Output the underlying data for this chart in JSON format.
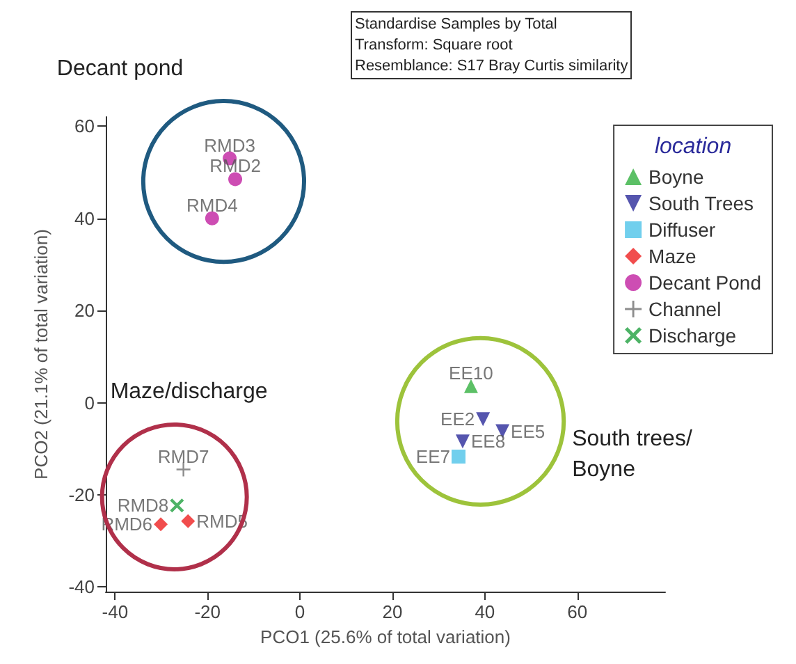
{
  "chart_data": {
    "type": "scatter",
    "xlabel": "PCO1 (25.6% of total variation)",
    "ylabel": "PCO2 (21.1% of total variation)",
    "legend_title": "location",
    "legend": "top right",
    "grid": false,
    "xlim": [
      -42,
      79
    ],
    "ylim": [
      -41,
      62
    ],
    "xticks": [
      -40,
      -20,
      0,
      20,
      40,
      60
    ],
    "yticks": [
      -40,
      -20,
      0,
      20,
      40,
      60
    ],
    "series": [
      {
        "name": "Boyne",
        "color": "#33b040",
        "marker": "triangle",
        "x": [
          37
        ],
        "values": [
          3.6
        ]
      },
      {
        "name": "South Trees",
        "color": "#2a2a9a",
        "marker": "triangle-down",
        "x": [
          39.6,
          43.8,
          35.2
        ],
        "values": [
          -3.6,
          -6.2,
          -8.4
        ]
      },
      {
        "name": "Diffuser",
        "color": "#4ec3e8",
        "marker": "square",
        "x": [
          34.3
        ],
        "values": [
          -11.7
        ]
      },
      {
        "name": "Maze",
        "color": "#ee2020",
        "marker": "diamond",
        "x": [
          -30.1,
          -24.2
        ],
        "values": [
          -26.4,
          -25.7
        ]
      },
      {
        "name": "Decant Pond",
        "color": "#c020a0",
        "marker": "circle",
        "x": [
          -15.2,
          -14,
          -19
        ],
        "values": [
          53,
          48.5,
          40
        ]
      },
      {
        "name": "Channel",
        "color": "#707070",
        "marker": "plus",
        "x": [
          -25.2
        ],
        "values": [
          -14.5
        ]
      },
      {
        "name": "Discharge",
        "color": "#20a040",
        "marker": "cross",
        "x": [
          -26.6
        ],
        "values": [
          -22.3
        ]
      }
    ],
    "annotations": [
      "Standardise Samples by Total",
      "Transform: Square root",
      "Resemblance: S17 Bray Curtis similarity",
      "Decant pond",
      "Maze/discharge",
      "South trees/\nBoyne",
      {
        "text": "RMD3",
        "x": -15.2,
        "y": 53
      },
      {
        "text": "RMD2",
        "x": -14,
        "y": 48.5
      },
      {
        "text": "RMD4",
        "x": -19,
        "y": 40
      },
      {
        "text": "EE10",
        "x": 37,
        "y": 3.6
      },
      {
        "text": "EE2",
        "x": 39.6,
        "y": -3.6
      },
      {
        "text": "EE5",
        "x": 43.8,
        "y": -6.2
      },
      {
        "text": "EE8",
        "x": 35.2,
        "y": -8.4
      },
      {
        "text": "EE7",
        "x": 34.3,
        "y": -11.7
      },
      {
        "text": "RMD7",
        "x": -25.2,
        "y": -14.5
      },
      {
        "text": "RMD8",
        "x": -26.6,
        "y": -22.3
      },
      {
        "text": "RMD6",
        "x": -30.1,
        "y": -26.4
      },
      {
        "text": "RMD5",
        "x": -24.2,
        "y": -25.7
      }
    ]
  }
}
